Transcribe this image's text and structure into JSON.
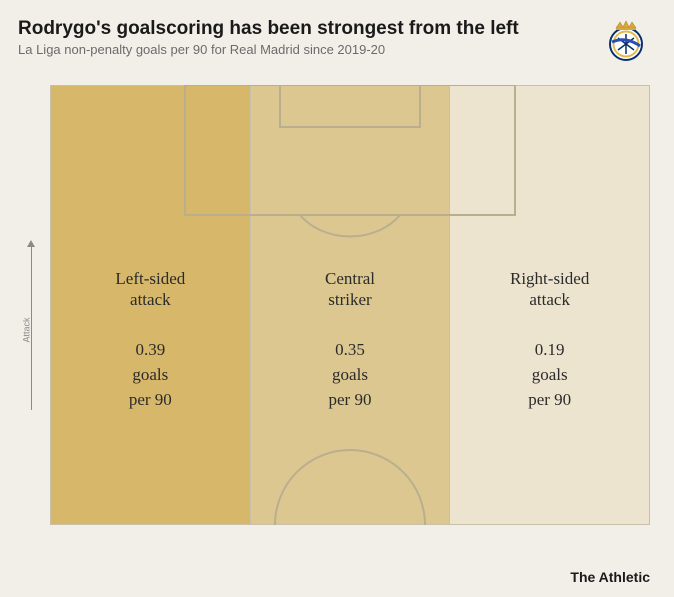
{
  "header": {
    "title": "Rodrygo's goalscoring has been strongest from the left",
    "subtitle": "La Liga non-penalty goals per 90 for Real Madrid since 2019-20",
    "title_fontsize": 19,
    "subtitle_fontsize": 13,
    "title_color": "#1a1a1a",
    "subtitle_color": "#6b6b6b"
  },
  "axis": {
    "label": "Attack"
  },
  "pitch": {
    "type": "infographic",
    "background": "#f2efe9",
    "line_color": "#c8c0a8",
    "box_line_strong": "#b9af8f",
    "zone_border": "#c8c0a8",
    "zones": [
      {
        "name_l1": "Left-sided",
        "name_l2": "attack",
        "value": "0.39",
        "unit_l1": "goals",
        "unit_l2": "per 90",
        "fill": "#d7b76a"
      },
      {
        "name_l1": "Central",
        "name_l2": "striker",
        "value": "0.35",
        "unit_l1": "goals",
        "unit_l2": "per 90",
        "fill": "#dcc790"
      },
      {
        "name_l1": "Right-sided",
        "name_l2": "attack",
        "value": "0.19",
        "unit_l1": "goals",
        "unit_l2": "per 90",
        "fill": "#ede4cf"
      }
    ],
    "text_color": "#2b2b2b",
    "zone_name_fontsize": 17,
    "zone_value_fontsize": 17
  },
  "footer": {
    "credit": "The Athletic"
  },
  "crest": {
    "ring_color": "#0b2f6b",
    "gold": "#e2b94a",
    "crown": "#d6a83c"
  }
}
